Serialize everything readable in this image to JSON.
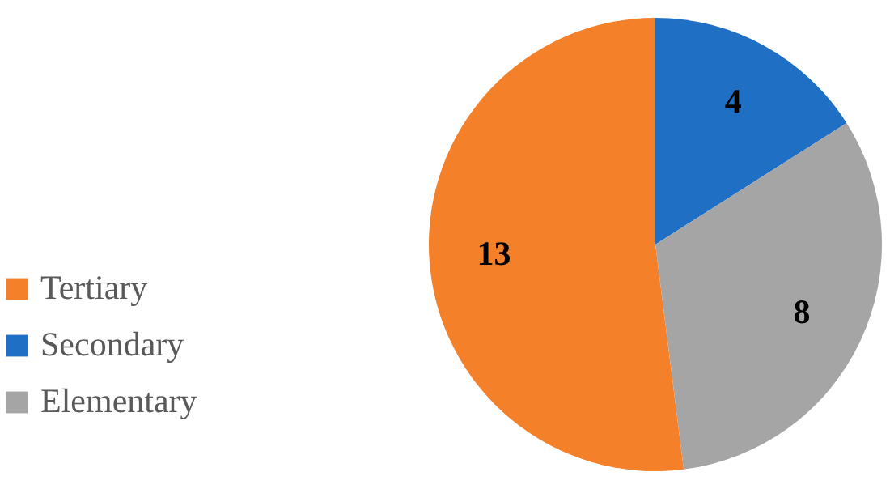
{
  "chart_data": {
    "type": "pie",
    "categories": [
      "Tertiary",
      "Secondary",
      "Elementary"
    ],
    "values": [
      13,
      4,
      8
    ],
    "colors": [
      "#f5802a",
      "#1f6fc5",
      "#a5a5a5"
    ],
    "data_labels": true,
    "legend": "left"
  }
}
